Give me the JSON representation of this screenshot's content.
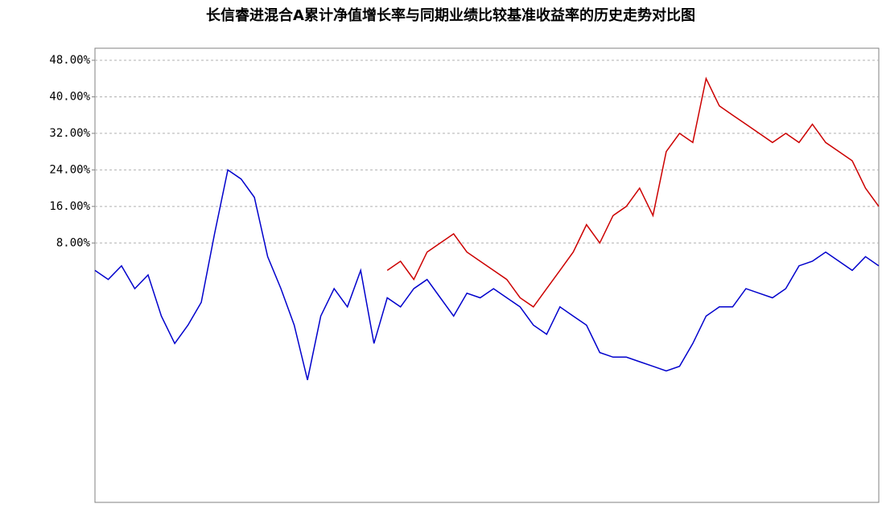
{
  "chart_data": {
    "type": "line",
    "title": "长信睿进混合A累计净值增长率与同期业绩比较基准收益率的历史走势对比图",
    "ylim": [
      -40,
      48
    ],
    "yticks": [
      {
        "value": 48,
        "label": "48.00%"
      },
      {
        "value": 40,
        "label": "40.00%"
      },
      {
        "value": 32,
        "label": "32.00%"
      },
      {
        "value": 24,
        "label": "24.00%"
      },
      {
        "value": 16,
        "label": "16.00%"
      },
      {
        "value": 8,
        "label": "8.00%"
      }
    ],
    "grid": true,
    "series": [
      {
        "color": "#cc0000",
        "values": [
          null,
          null,
          null,
          null,
          null,
          null,
          null,
          null,
          null,
          null,
          null,
          null,
          null,
          null,
          null,
          null,
          null,
          null,
          null,
          null,
          null,
          null,
          2,
          4,
          0,
          6,
          8,
          10,
          6,
          4,
          2,
          0,
          -4,
          -6,
          -2,
          2,
          6,
          12,
          8,
          14,
          16,
          20,
          14,
          28,
          32,
          30,
          44,
          38,
          36,
          34,
          32,
          30,
          32,
          30,
          34,
          30,
          28,
          26,
          20,
          16
        ]
      },
      {
        "color": "#0000cc",
        "values": [
          2,
          0,
          3,
          -2,
          1,
          -8,
          -14,
          -10,
          -5,
          10,
          24,
          22,
          18,
          5,
          -2,
          -10,
          -22,
          -8,
          -2,
          -6,
          2,
          -14,
          -4,
          -6,
          -2,
          0,
          -4,
          -8,
          -3,
          -4,
          -2,
          -4,
          -6,
          -10,
          -12,
          -6,
          -8,
          -10,
          -16,
          -17,
          -17,
          -18,
          -19,
          -20,
          -19,
          -14,
          -8,
          -6,
          -6,
          -2,
          -3,
          -4,
          -2,
          3,
          4,
          6,
          4,
          2,
          5,
          3
        ]
      }
    ]
  }
}
